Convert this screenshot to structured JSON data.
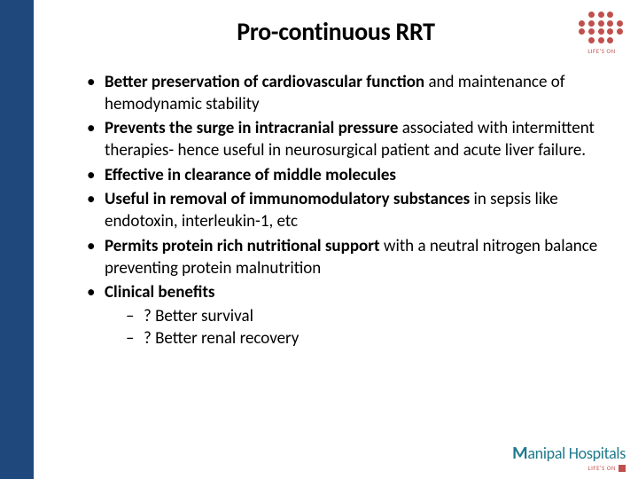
{
  "colors": {
    "sidebar": "#1f497d",
    "text": "#000000",
    "accent_red": "#c0504d",
    "brand_teal": "#1f7a8c",
    "background": "#ffffff"
  },
  "typography": {
    "title_fontsize": 28,
    "body_fontsize": 19,
    "font_family": "Calibri"
  },
  "title": "Pro-continuous RRT",
  "bullets": [
    {
      "bold": "Better preservation of cardiovascular function ",
      "rest": "and maintenance of  hemodynamic stability"
    },
    {
      "bold": "Prevents the surge in intracranial pressure ",
      "rest": "associated with intermittent therapies- hence useful in neurosurgical patient and acute liver failure."
    },
    {
      "bold": "Effective in clearance of middle molecules",
      "rest": ""
    },
    {
      "bold": "Useful in removal of immunomodulatory substances ",
      "rest": "in sepsis like endotoxin, interleukin-1, etc"
    },
    {
      "bold": "Permits protein rich nutritional support ",
      "rest": "with a neutral nitrogen balance preventing protein malnutrition"
    },
    {
      "bold": "Clinical benefits",
      "rest": "",
      "sub": [
        "? Better survival",
        "? Better renal recovery"
      ]
    }
  ],
  "logo_top": {
    "tagline": "LIFE'S ON"
  },
  "logo_bottom": {
    "brand_prefix": "M",
    "brand_rest": "anipal Hospitals",
    "tagline": "LIFE'S ON"
  }
}
